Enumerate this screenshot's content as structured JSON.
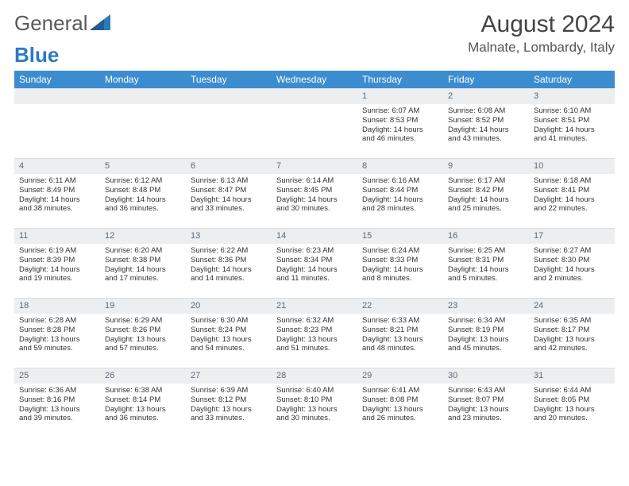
{
  "logo": {
    "part1": "General",
    "part2": "Blue"
  },
  "title": "August 2024",
  "location": "Malnate, Lombardy, Italy",
  "colors": {
    "header_bg": "#3b8dd0",
    "header_text": "#ffffff",
    "daynum_bg": "#eceef0",
    "daynum_text": "#5a6a7a",
    "body_text": "#333333",
    "logo_gray": "#5a5a5a",
    "logo_blue": "#2a7bc0",
    "page_bg": "#ffffff",
    "border": "#d8dde2"
  },
  "typography": {
    "month_fontsize": 30,
    "location_fontsize": 17,
    "weekday_fontsize": 12,
    "daynum_fontsize": 11,
    "cell_fontsize": 9.5,
    "font_family": "Arial"
  },
  "weekdays": [
    "Sunday",
    "Monday",
    "Tuesday",
    "Wednesday",
    "Thursday",
    "Friday",
    "Saturday"
  ],
  "weeks": [
    [
      null,
      null,
      null,
      null,
      {
        "n": "1",
        "sr": "6:07 AM",
        "ss": "8:53 PM",
        "dl1": "14 hours",
        "dl2": "and 46 minutes."
      },
      {
        "n": "2",
        "sr": "6:08 AM",
        "ss": "8:52 PM",
        "dl1": "14 hours",
        "dl2": "and 43 minutes."
      },
      {
        "n": "3",
        "sr": "6:10 AM",
        "ss": "8:51 PM",
        "dl1": "14 hours",
        "dl2": "and 41 minutes."
      }
    ],
    [
      {
        "n": "4",
        "sr": "6:11 AM",
        "ss": "8:49 PM",
        "dl1": "14 hours",
        "dl2": "and 38 minutes."
      },
      {
        "n": "5",
        "sr": "6:12 AM",
        "ss": "8:48 PM",
        "dl1": "14 hours",
        "dl2": "and 36 minutes."
      },
      {
        "n": "6",
        "sr": "6:13 AM",
        "ss": "8:47 PM",
        "dl1": "14 hours",
        "dl2": "and 33 minutes."
      },
      {
        "n": "7",
        "sr": "6:14 AM",
        "ss": "8:45 PM",
        "dl1": "14 hours",
        "dl2": "and 30 minutes."
      },
      {
        "n": "8",
        "sr": "6:16 AM",
        "ss": "8:44 PM",
        "dl1": "14 hours",
        "dl2": "and 28 minutes."
      },
      {
        "n": "9",
        "sr": "6:17 AM",
        "ss": "8:42 PM",
        "dl1": "14 hours",
        "dl2": "and 25 minutes."
      },
      {
        "n": "10",
        "sr": "6:18 AM",
        "ss": "8:41 PM",
        "dl1": "14 hours",
        "dl2": "and 22 minutes."
      }
    ],
    [
      {
        "n": "11",
        "sr": "6:19 AM",
        "ss": "8:39 PM",
        "dl1": "14 hours",
        "dl2": "and 19 minutes."
      },
      {
        "n": "12",
        "sr": "6:20 AM",
        "ss": "8:38 PM",
        "dl1": "14 hours",
        "dl2": "and 17 minutes."
      },
      {
        "n": "13",
        "sr": "6:22 AM",
        "ss": "8:36 PM",
        "dl1": "14 hours",
        "dl2": "and 14 minutes."
      },
      {
        "n": "14",
        "sr": "6:23 AM",
        "ss": "8:34 PM",
        "dl1": "14 hours",
        "dl2": "and 11 minutes."
      },
      {
        "n": "15",
        "sr": "6:24 AM",
        "ss": "8:33 PM",
        "dl1": "14 hours",
        "dl2": "and 8 minutes."
      },
      {
        "n": "16",
        "sr": "6:25 AM",
        "ss": "8:31 PM",
        "dl1": "14 hours",
        "dl2": "and 5 minutes."
      },
      {
        "n": "17",
        "sr": "6:27 AM",
        "ss": "8:30 PM",
        "dl1": "14 hours",
        "dl2": "and 2 minutes."
      }
    ],
    [
      {
        "n": "18",
        "sr": "6:28 AM",
        "ss": "8:28 PM",
        "dl1": "13 hours",
        "dl2": "and 59 minutes."
      },
      {
        "n": "19",
        "sr": "6:29 AM",
        "ss": "8:26 PM",
        "dl1": "13 hours",
        "dl2": "and 57 minutes."
      },
      {
        "n": "20",
        "sr": "6:30 AM",
        "ss": "8:24 PM",
        "dl1": "13 hours",
        "dl2": "and 54 minutes."
      },
      {
        "n": "21",
        "sr": "6:32 AM",
        "ss": "8:23 PM",
        "dl1": "13 hours",
        "dl2": "and 51 minutes."
      },
      {
        "n": "22",
        "sr": "6:33 AM",
        "ss": "8:21 PM",
        "dl1": "13 hours",
        "dl2": "and 48 minutes."
      },
      {
        "n": "23",
        "sr": "6:34 AM",
        "ss": "8:19 PM",
        "dl1": "13 hours",
        "dl2": "and 45 minutes."
      },
      {
        "n": "24",
        "sr": "6:35 AM",
        "ss": "8:17 PM",
        "dl1": "13 hours",
        "dl2": "and 42 minutes."
      }
    ],
    [
      {
        "n": "25",
        "sr": "6:36 AM",
        "ss": "8:16 PM",
        "dl1": "13 hours",
        "dl2": "and 39 minutes."
      },
      {
        "n": "26",
        "sr": "6:38 AM",
        "ss": "8:14 PM",
        "dl1": "13 hours",
        "dl2": "and 36 minutes."
      },
      {
        "n": "27",
        "sr": "6:39 AM",
        "ss": "8:12 PM",
        "dl1": "13 hours",
        "dl2": "and 33 minutes."
      },
      {
        "n": "28",
        "sr": "6:40 AM",
        "ss": "8:10 PM",
        "dl1": "13 hours",
        "dl2": "and 30 minutes."
      },
      {
        "n": "29",
        "sr": "6:41 AM",
        "ss": "8:08 PM",
        "dl1": "13 hours",
        "dl2": "and 26 minutes."
      },
      {
        "n": "30",
        "sr": "6:43 AM",
        "ss": "8:07 PM",
        "dl1": "13 hours",
        "dl2": "and 23 minutes."
      },
      {
        "n": "31",
        "sr": "6:44 AM",
        "ss": "8:05 PM",
        "dl1": "13 hours",
        "dl2": "and 20 minutes."
      }
    ]
  ],
  "labels": {
    "sunrise_prefix": "Sunrise: ",
    "sunset_prefix": "Sunset: ",
    "daylight_prefix": "Daylight: "
  }
}
